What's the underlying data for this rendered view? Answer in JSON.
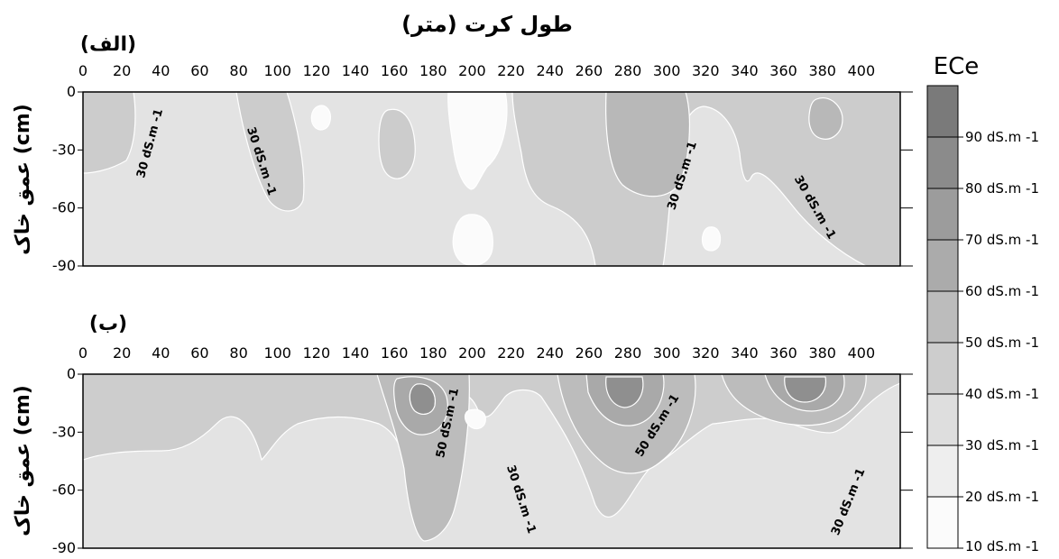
{
  "chart_data": {
    "type": "contour",
    "title": "طول کرت (متر)",
    "legend": {
      "title": "ECe",
      "levels": [
        "90 dS.m -1",
        "80 dS.m -1",
        "70 dS.m -1",
        "60 dS.m -1",
        "50 dS.m -1",
        "40 dS.m -1",
        "30 dS.m -1",
        "20 dS.m -1",
        "10 dS.m -1"
      ],
      "colors": [
        "#7a7a7a",
        "#8b8b8b",
        "#9c9c9c",
        "#ababab",
        "#bcbcbc",
        "#cdcdcd",
        "#dedede",
        "#eeeeee",
        "#fbfbfb"
      ]
    },
    "panels": [
      {
        "label": "(الف)",
        "ylabel": "عمق خاک (cm)",
        "xticks": [
          "0",
          "20",
          "40",
          "60",
          "80",
          "100",
          "120",
          "140",
          "160",
          "180",
          "200",
          "220",
          "240",
          "260",
          "280",
          "300",
          "320",
          "340",
          "360",
          "380",
          "400"
        ],
        "yticks": [
          "0",
          "-30",
          "-60",
          "-90"
        ],
        "xlim": [
          0,
          420
        ],
        "ylim": [
          -90,
          0
        ],
        "contour_labels": [
          "30 dS.m -1",
          "30 dS.m -1",
          "30 dS.m -1",
          "30 dS.m -1"
        ]
      },
      {
        "label": "(ب)",
        "ylabel": "عمق خاک (cm)",
        "xticks": [
          "0",
          "20",
          "40",
          "60",
          "80",
          "100",
          "120",
          "140",
          "160",
          "180",
          "200",
          "220",
          "240",
          "260",
          "280",
          "300",
          "320",
          "340",
          "360",
          "380",
          "400"
        ],
        "yticks": [
          "0",
          "-30",
          "-60",
          "-90"
        ],
        "xlim": [
          0,
          420
        ],
        "ylim": [
          -90,
          0
        ],
        "contour_labels": [
          "50 dS.m -1",
          "30 dS.m -1",
          "50 dS.m -1",
          "30 dS.m -1"
        ]
      }
    ]
  }
}
